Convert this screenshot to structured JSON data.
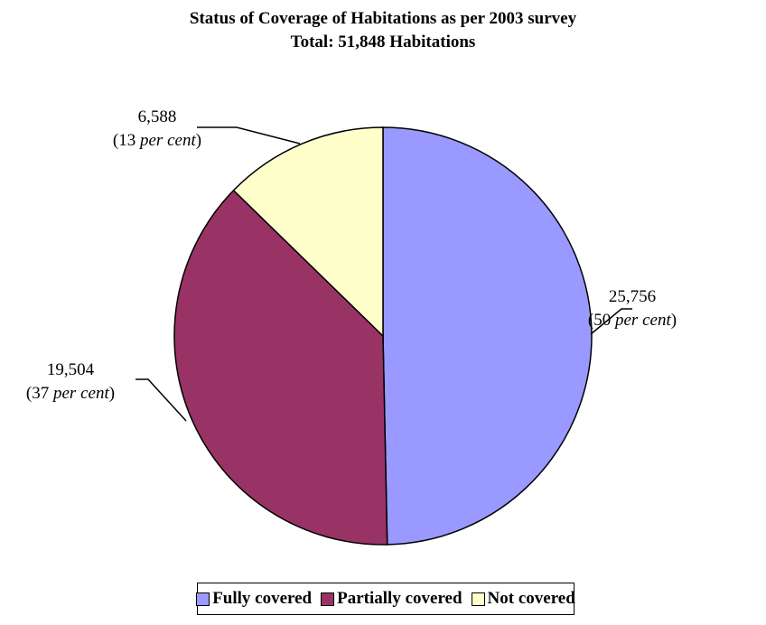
{
  "chart_data": {
    "type": "pie",
    "title": "Status of Coverage of Habitations as per 2003 survey",
    "subtitle": "Total: 51,848 Habitations",
    "slices": [
      {
        "name": "Fully covered",
        "value": 25756,
        "value_label": "25,756",
        "percent_label": "50",
        "color": "#9999ff"
      },
      {
        "name": "Partially covered",
        "value": 19504,
        "value_label": "19,504",
        "percent_label": "37",
        "color": "#993366"
      },
      {
        "name": "Not covered",
        "value": 6588,
        "value_label": "6,588",
        "percent_label": "13",
        "color": "#ffffcc"
      }
    ],
    "percent_suffix": "per cent",
    "legend_position": "bottom"
  }
}
